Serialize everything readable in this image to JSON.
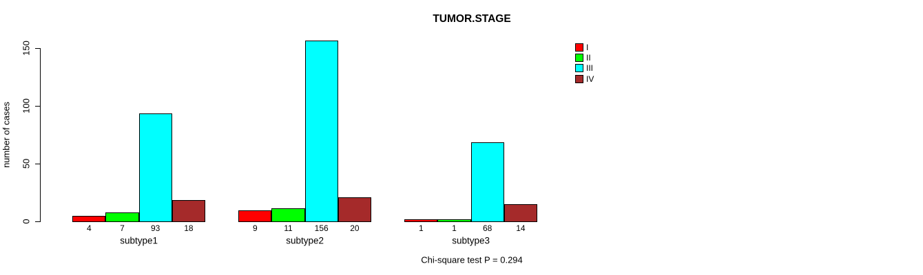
{
  "chart_data": {
    "type": "bar",
    "title": "TUMOR.STAGE",
    "ylabel": "number of cases",
    "xlabel": "",
    "categories": [
      "subtype1",
      "subtype2",
      "subtype3"
    ],
    "series": [
      {
        "name": "I",
        "color": "#FF0000",
        "values": [
          4,
          9,
          1
        ]
      },
      {
        "name": "II",
        "color": "#00FF00",
        "values": [
          7,
          11,
          1
        ]
      },
      {
        "name": "III",
        "color": "#00FFFF",
        "values": [
          93,
          156,
          68
        ]
      },
      {
        "name": "IV",
        "color": "#A52A2A",
        "values": [
          18,
          20,
          14
        ]
      }
    ],
    "yticks": [
      0,
      50,
      100,
      150
    ],
    "ylim": [
      0,
      156
    ],
    "show_bar_values": true,
    "annotation": "Chi-square test P = 0.294",
    "legend_position": "top-right",
    "grid": false,
    "background": "#ffffff",
    "axis_color": "#000000"
  }
}
